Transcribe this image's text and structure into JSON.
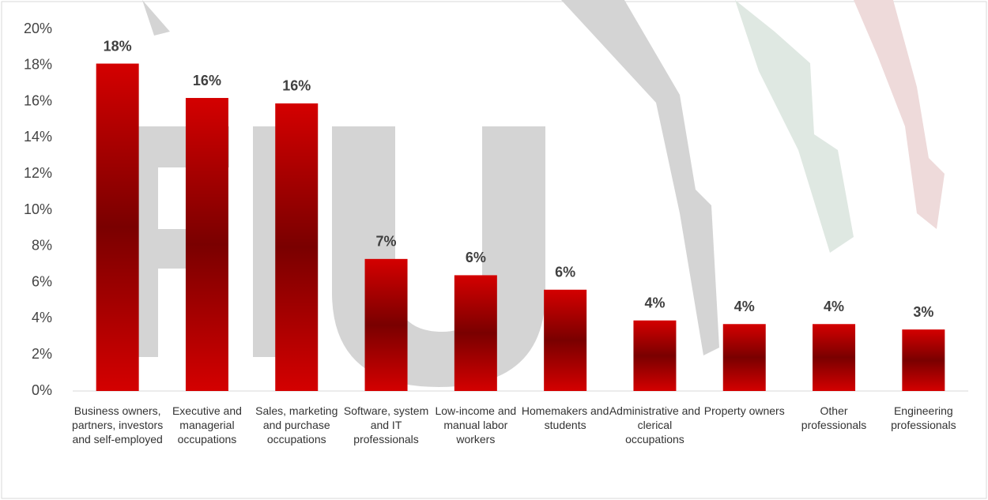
{
  "chart_data": {
    "type": "bar",
    "categories": [
      "Business owners, partners, investors and self-employed",
      "Executive and managerial occupations",
      "Sales, marketing and purchase occupations",
      "Software, system and IT professionals",
      "Low-income and manual labor workers",
      "Homemakers and students",
      "Administrative and clerical occupations",
      "Property owners",
      "Other professionals",
      "Engineering professionals"
    ],
    "values": [
      18.1,
      16.2,
      15.9,
      7.3,
      6.4,
      5.6,
      3.9,
      3.7,
      3.7,
      3.4
    ],
    "value_labels": [
      "18%",
      "16%",
      "16%",
      "7%",
      "6%",
      "6%",
      "4%",
      "4%",
      "4%",
      "3%"
    ],
    "color": "#cc0000",
    "ylim": [
      0,
      20
    ],
    "yticks": [
      {
        "value": 0,
        "label": "0%"
      },
      {
        "value": 2,
        "label": "2%"
      },
      {
        "value": 4,
        "label": "4%"
      },
      {
        "value": 6,
        "label": "6%"
      },
      {
        "value": 8,
        "label": "8%"
      },
      {
        "value": 10,
        "label": "10%"
      },
      {
        "value": 12,
        "label": "12%"
      },
      {
        "value": 14,
        "label": "14%"
      },
      {
        "value": 16,
        "label": "16%"
      },
      {
        "value": 18,
        "label": "18%"
      },
      {
        "value": 20,
        "label": "20%"
      }
    ],
    "grid": false
  }
}
